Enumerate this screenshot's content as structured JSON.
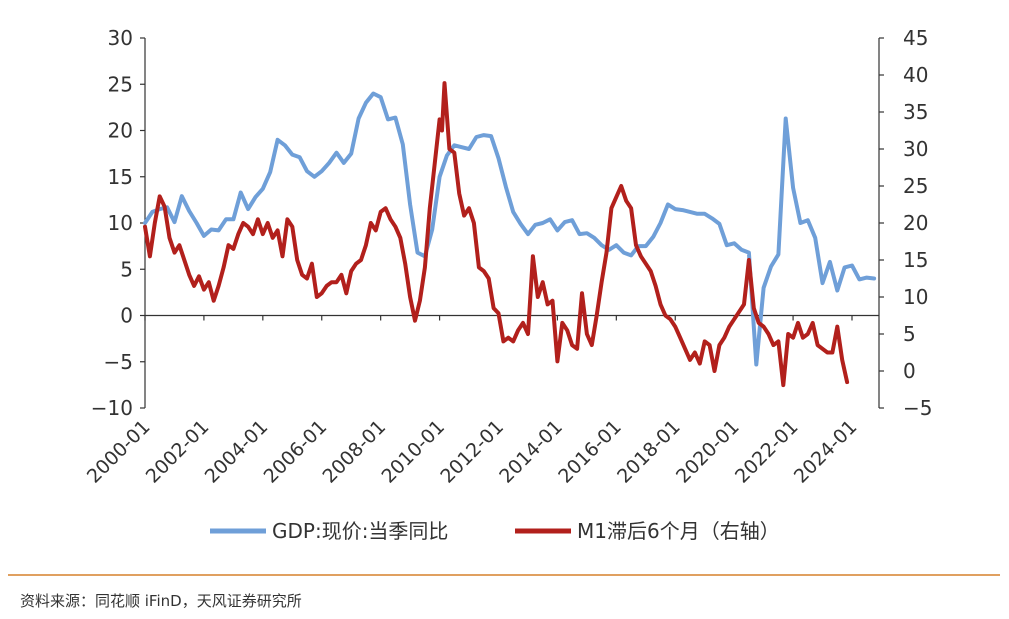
{
  "chart_data": {
    "type": "line",
    "x_range": [
      "2000-01",
      "2024-12"
    ],
    "x_ticks": [
      "2000-01",
      "2002-01",
      "2004-01",
      "2006-01",
      "2008-01",
      "2010-01",
      "2012-01",
      "2014-01",
      "2016-01",
      "2018-01",
      "2020-01",
      "2022-01",
      "2024-01"
    ],
    "left_axis": {
      "ylim": [
        -10,
        30
      ],
      "ticks": [
        "30",
        "25",
        "20",
        "15",
        "10",
        "5",
        "0",
        "−5",
        "−10"
      ]
    },
    "right_axis": {
      "ylim": [
        -5,
        45
      ],
      "ticks": [
        "45",
        "40",
        "35",
        "30",
        "25",
        "20",
        "15",
        "10",
        "5",
        "0",
        "−5"
      ]
    },
    "series": [
      {
        "name": "GDP:现价:当季同比",
        "axis": "left",
        "color": "#6f9fd8",
        "points": [
          [
            "2000-01",
            10.0
          ],
          [
            "2000-04",
            11.2
          ],
          [
            "2000-07",
            11.5
          ],
          [
            "2000-10",
            11.7
          ],
          [
            "2001-01",
            10.1
          ],
          [
            "2001-04",
            12.9
          ],
          [
            "2001-07",
            11.3
          ],
          [
            "2001-10",
            10.0
          ],
          [
            "2002-01",
            8.6
          ],
          [
            "2002-04",
            9.3
          ],
          [
            "2002-07",
            9.2
          ],
          [
            "2002-10",
            10.4
          ],
          [
            "2003-01",
            10.4
          ],
          [
            "2003-04",
            13.3
          ],
          [
            "2003-07",
            11.5
          ],
          [
            "2003-10",
            12.8
          ],
          [
            "2004-01",
            13.7
          ],
          [
            "2004-04",
            15.5
          ],
          [
            "2004-07",
            19.0
          ],
          [
            "2004-10",
            18.4
          ],
          [
            "2005-01",
            17.4
          ],
          [
            "2005-04",
            17.1
          ],
          [
            "2005-07",
            15.6
          ],
          [
            "2005-10",
            15.0
          ],
          [
            "2006-01",
            15.6
          ],
          [
            "2006-04",
            16.5
          ],
          [
            "2006-07",
            17.6
          ],
          [
            "2006-10",
            16.5
          ],
          [
            "2007-01",
            17.5
          ],
          [
            "2007-04",
            21.3
          ],
          [
            "2007-07",
            23.0
          ],
          [
            "2007-10",
            24.0
          ],
          [
            "2008-01",
            23.6
          ],
          [
            "2008-04",
            21.2
          ],
          [
            "2008-07",
            21.4
          ],
          [
            "2008-10",
            18.5
          ],
          [
            "2009-01",
            12.0
          ],
          [
            "2009-04",
            6.8
          ],
          [
            "2009-07",
            6.4
          ],
          [
            "2009-10",
            9.3
          ],
          [
            "2010-01",
            15.0
          ],
          [
            "2010-04",
            17.3
          ],
          [
            "2010-07",
            18.4
          ],
          [
            "2010-10",
            18.2
          ],
          [
            "2011-01",
            18.0
          ],
          [
            "2011-04",
            19.3
          ],
          [
            "2011-07",
            19.5
          ],
          [
            "2011-10",
            19.4
          ],
          [
            "2012-01",
            17.0
          ],
          [
            "2012-04",
            13.9
          ],
          [
            "2012-07",
            11.2
          ],
          [
            "2012-10",
            9.9
          ],
          [
            "2013-01",
            8.8
          ],
          [
            "2013-04",
            9.8
          ],
          [
            "2013-07",
            10.0
          ],
          [
            "2013-10",
            10.4
          ],
          [
            "2014-01",
            9.2
          ],
          [
            "2014-04",
            10.1
          ],
          [
            "2014-07",
            10.3
          ],
          [
            "2014-10",
            8.8
          ],
          [
            "2015-01",
            8.9
          ],
          [
            "2015-04",
            8.4
          ],
          [
            "2015-07",
            7.6
          ],
          [
            "2015-10",
            7.1
          ],
          [
            "2016-01",
            7.6
          ],
          [
            "2016-04",
            6.8
          ],
          [
            "2016-07",
            6.5
          ],
          [
            "2016-10",
            7.5
          ],
          [
            "2017-01",
            7.5
          ],
          [
            "2017-04",
            8.5
          ],
          [
            "2017-07",
            10.0
          ],
          [
            "2017-10",
            12.0
          ],
          [
            "2018-01",
            11.5
          ],
          [
            "2018-04",
            11.4
          ],
          [
            "2018-07",
            11.2
          ],
          [
            "2018-10",
            11.0
          ],
          [
            "2019-01",
            11.0
          ],
          [
            "2019-04",
            10.5
          ],
          [
            "2019-07",
            9.9
          ],
          [
            "2019-10",
            7.6
          ],
          [
            "2020-01",
            7.8
          ],
          [
            "2020-04",
            7.1
          ],
          [
            "2020-07",
            6.8
          ],
          [
            "2020-10",
            -5.3
          ],
          [
            "2021-01",
            3.0
          ],
          [
            "2021-04",
            5.3
          ],
          [
            "2021-07",
            6.6
          ],
          [
            "2021-10",
            21.3
          ],
          [
            "2022-01",
            13.8
          ],
          [
            "2022-04",
            10.0
          ],
          [
            "2022-07",
            10.3
          ],
          [
            "2022-10",
            8.4
          ],
          [
            "2023-01",
            3.5
          ],
          [
            "2023-04",
            5.8
          ],
          [
            "2023-07",
            2.7
          ],
          [
            "2023-10",
            5.2
          ],
          [
            "2024-01",
            5.4
          ],
          [
            "2024-04",
            3.9
          ],
          [
            "2024-07",
            4.1
          ],
          [
            "2024-10",
            4.0
          ]
        ]
      },
      {
        "name": "M1滞后6个月（右轴）",
        "axis": "right",
        "color": "#b2201c",
        "points": [
          [
            "2000-01",
            19.5
          ],
          [
            "2000-03",
            15.5
          ],
          [
            "2000-05",
            20.0
          ],
          [
            "2000-07",
            23.6
          ],
          [
            "2000-09",
            22.2
          ],
          [
            "2000-11",
            18.0
          ],
          [
            "2001-01",
            16.0
          ],
          [
            "2001-03",
            17.0
          ],
          [
            "2001-05",
            15.0
          ],
          [
            "2001-07",
            13.0
          ],
          [
            "2001-09",
            11.5
          ],
          [
            "2001-11",
            12.8
          ],
          [
            "2002-01",
            11.0
          ],
          [
            "2002-03",
            12.0
          ],
          [
            "2002-05",
            9.5
          ],
          [
            "2002-07",
            11.5
          ],
          [
            "2002-09",
            14.0
          ],
          [
            "2002-11",
            17.0
          ],
          [
            "2003-01",
            16.5
          ],
          [
            "2003-03",
            18.5
          ],
          [
            "2003-05",
            20.0
          ],
          [
            "2003-07",
            19.5
          ],
          [
            "2003-09",
            18.5
          ],
          [
            "2003-11",
            20.5
          ],
          [
            "2004-01",
            18.5
          ],
          [
            "2004-03",
            20.0
          ],
          [
            "2004-05",
            18.0
          ],
          [
            "2004-07",
            19.0
          ],
          [
            "2004-09",
            15.5
          ],
          [
            "2004-11",
            20.5
          ],
          [
            "2005-01",
            19.5
          ],
          [
            "2005-03",
            15.0
          ],
          [
            "2005-05",
            13.0
          ],
          [
            "2005-07",
            12.5
          ],
          [
            "2005-09",
            14.5
          ],
          [
            "2005-11",
            10.0
          ],
          [
            "2006-01",
            10.5
          ],
          [
            "2006-03",
            11.5
          ],
          [
            "2006-05",
            12.0
          ],
          [
            "2006-07",
            12.0
          ],
          [
            "2006-09",
            13.0
          ],
          [
            "2006-11",
            10.5
          ],
          [
            "2007-01",
            13.5
          ],
          [
            "2007-03",
            14.5
          ],
          [
            "2007-05",
            15.0
          ],
          [
            "2007-07",
            17.0
          ],
          [
            "2007-09",
            20.0
          ],
          [
            "2007-11",
            19.0
          ],
          [
            "2008-01",
            21.5
          ],
          [
            "2008-03",
            22.0
          ],
          [
            "2008-05",
            20.5
          ],
          [
            "2008-07",
            19.5
          ],
          [
            "2008-09",
            18.0
          ],
          [
            "2008-11",
            14.5
          ],
          [
            "2009-01",
            10.0
          ],
          [
            "2009-03",
            6.8
          ],
          [
            "2009-05",
            9.5
          ],
          [
            "2009-07",
            14.0
          ],
          [
            "2009-09",
            22.0
          ],
          [
            "2009-11",
            28.0
          ],
          [
            "2010-01",
            34.0
          ],
          [
            "2010-02",
            32.5
          ],
          [
            "2010-03",
            38.9
          ],
          [
            "2010-05",
            30.0
          ],
          [
            "2010-07",
            29.5
          ],
          [
            "2010-09",
            24.0
          ],
          [
            "2010-11",
            21.0
          ],
          [
            "2011-01",
            22.0
          ],
          [
            "2011-03",
            20.0
          ],
          [
            "2011-05",
            14.0
          ],
          [
            "2011-07",
            13.5
          ],
          [
            "2011-09",
            12.5
          ],
          [
            "2011-11",
            8.5
          ],
          [
            "2012-01",
            7.8
          ],
          [
            "2012-03",
            4.0
          ],
          [
            "2012-05",
            4.5
          ],
          [
            "2012-07",
            4.0
          ],
          [
            "2012-09",
            5.5
          ],
          [
            "2012-11",
            6.5
          ],
          [
            "2013-01",
            5.0
          ],
          [
            "2013-03",
            15.5
          ],
          [
            "2013-05",
            10.0
          ],
          [
            "2013-07",
            12.0
          ],
          [
            "2013-09",
            9.0
          ],
          [
            "2013-11",
            9.5
          ],
          [
            "2014-01",
            1.3
          ],
          [
            "2014-03",
            6.5
          ],
          [
            "2014-05",
            5.5
          ],
          [
            "2014-07",
            3.5
          ],
          [
            "2014-09",
            3.0
          ],
          [
            "2014-11",
            10.5
          ],
          [
            "2015-01",
            5.0
          ],
          [
            "2015-03",
            3.5
          ],
          [
            "2015-05",
            7.5
          ],
          [
            "2015-07",
            12.0
          ],
          [
            "2015-09",
            16.0
          ],
          [
            "2015-11",
            22.0
          ],
          [
            "2016-01",
            23.5
          ],
          [
            "2016-03",
            25.0
          ],
          [
            "2016-05",
            23.0
          ],
          [
            "2016-07",
            22.0
          ],
          [
            "2016-09",
            17.0
          ],
          [
            "2016-11",
            15.5
          ],
          [
            "2017-01",
            14.5
          ],
          [
            "2017-03",
            13.5
          ],
          [
            "2017-05",
            11.5
          ],
          [
            "2017-07",
            9.0
          ],
          [
            "2017-09",
            7.5
          ],
          [
            "2017-11",
            7.0
          ],
          [
            "2018-01",
            6.0
          ],
          [
            "2018-03",
            4.5
          ],
          [
            "2018-05",
            3.0
          ],
          [
            "2018-07",
            1.5
          ],
          [
            "2018-09",
            2.5
          ],
          [
            "2018-11",
            1.0
          ],
          [
            "2019-01",
            4.0
          ],
          [
            "2019-03",
            3.5
          ],
          [
            "2019-05",
            0.0
          ],
          [
            "2019-07",
            3.5
          ],
          [
            "2019-09",
            4.5
          ],
          [
            "2019-11",
            6.0
          ],
          [
            "2020-01",
            7.0
          ],
          [
            "2020-03",
            8.0
          ],
          [
            "2020-05",
            9.0
          ],
          [
            "2020-07",
            15.0
          ],
          [
            "2020-09",
            8.5
          ],
          [
            "2020-11",
            6.5
          ],
          [
            "2021-01",
            6.0
          ],
          [
            "2021-03",
            5.0
          ],
          [
            "2021-05",
            3.5
          ],
          [
            "2021-07",
            4.0
          ],
          [
            "2021-09",
            -1.9
          ],
          [
            "2021-11",
            5.0
          ],
          [
            "2022-01",
            4.5
          ],
          [
            "2022-03",
            6.5
          ],
          [
            "2022-05",
            4.5
          ],
          [
            "2022-07",
            5.0
          ],
          [
            "2022-09",
            6.5
          ],
          [
            "2022-11",
            3.5
          ],
          [
            "2023-01",
            3.0
          ],
          [
            "2023-03",
            2.5
          ],
          [
            "2023-05",
            2.5
          ],
          [
            "2023-07",
            6.0
          ],
          [
            "2023-09",
            1.5
          ],
          [
            "2023-11",
            -1.5
          ]
        ]
      }
    ],
    "legend_position": "bottom",
    "grid": false
  },
  "source_text": "资料来源：同花顺 iFinD，天风证券研究所"
}
